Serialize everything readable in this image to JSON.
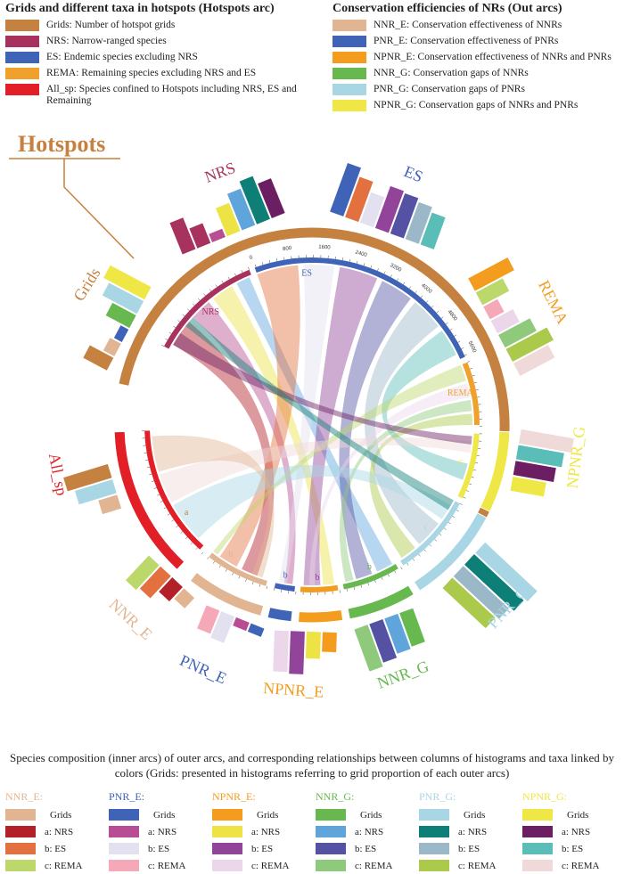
{
  "legend_left": {
    "title": "Grids and different taxa in hotspots (Hotspots arc)",
    "items": [
      {
        "color": "#c5813f",
        "label": "Grids: Number of hotspot grids"
      },
      {
        "color": "#a8325e",
        "label": "NRS: Narrow-ranged species"
      },
      {
        "color": "#3f63b6",
        "label": "ES: Endemic species excluding NRS"
      },
      {
        "color": "#f0a12b",
        "label": "REMA: Remaining species excluding NRS and ES"
      },
      {
        "color": "#e21f26",
        "label": "All_sp: Species confined to Hotspots including NRS, ES and Remaining"
      }
    ]
  },
  "legend_right": {
    "title": "Conservation efficiencies of NRs (Out arcs)",
    "items": [
      {
        "color": "#e2b592",
        "label": "NNR_E: Conservation effectiveness of NNRs"
      },
      {
        "color": "#3f63b6",
        "label": "PNR_E: Conservation effectiveness of PNRs"
      },
      {
        "color": "#f39c1d",
        "label": "NPNR_E: Conservation effectiveness of NNRs and PNRs"
      },
      {
        "color": "#67b84f",
        "label": "NNR_G: Conservation gaps of NNRs"
      },
      {
        "color": "#a8d6e4",
        "label": "PNR_G: Conservation gaps of PNRs"
      },
      {
        "color": "#efe745",
        "label": "NPNR_G: Conservation gaps of NNRs and PNRs"
      }
    ]
  },
  "hotspots_label": "Hotspots",
  "outer_arc_labels": [
    {
      "text": "NRS",
      "color": "#a8325e"
    },
    {
      "text": "ES",
      "color": "#3f63b6"
    },
    {
      "text": "REMA",
      "color": "#f0a12b"
    },
    {
      "text": "NPNR_G",
      "color": "#efe745"
    },
    {
      "text": "PNR_G",
      "color": "#a8d6e4"
    },
    {
      "text": "NNR_G",
      "color": "#67b84f"
    },
    {
      "text": "NPNR_E",
      "color": "#f39c1d"
    },
    {
      "text": "PNR_E",
      "color": "#3f63b6"
    },
    {
      "text": "NNR_E",
      "color": "#e2b592"
    },
    {
      "text": "All_sp",
      "color": "#e21f26"
    },
    {
      "text": "Grids",
      "color": "#c5813f"
    }
  ],
  "inner_arc_labels": [
    "NRS",
    "ES",
    "REMA",
    "a",
    "b",
    "c"
  ],
  "tick_labels": [
    "0",
    "800",
    "1600",
    "2400",
    "3200",
    "4000",
    "4800",
    "5600"
  ],
  "caption": "Species composition (inner arcs) of outer arcs, and corresponding relationships between columns of histograms and taxa linked by colors (Grids: presented in histograms referring to grid proportion of each outer arcs)",
  "bottom_groups": [
    {
      "title": "NNR_E:",
      "title_color": "#e2b592",
      "rows": [
        {
          "color": "#e2b592",
          "label": "Grids"
        },
        {
          "color": "#b42028",
          "label": "a: NRS"
        },
        {
          "color": "#e3703f",
          "label": "b: ES"
        },
        {
          "color": "#bcd86b",
          "label": "c: REMA"
        }
      ]
    },
    {
      "title": "PNR_E:",
      "title_color": "#3f63b6",
      "rows": [
        {
          "color": "#3f63b6",
          "label": "Grids"
        },
        {
          "color": "#b94d93",
          "label": "a: NRS"
        },
        {
          "color": "#e3e1ef",
          "label": "b: ES"
        },
        {
          "color": "#f5a8b8",
          "label": "c: REMA"
        }
      ]
    },
    {
      "title": "NPNR_E:",
      "title_color": "#f39c1d",
      "rows": [
        {
          "color": "#f39c1d",
          "label": "Grids"
        },
        {
          "color": "#eee345",
          "label": "a: NRS"
        },
        {
          "color": "#92449a",
          "label": "b: ES"
        },
        {
          "color": "#ecd7ea",
          "label": "c: REMA"
        }
      ]
    },
    {
      "title": "NNR_G:",
      "title_color": "#67b84f",
      "rows": [
        {
          "color": "#67b84f",
          "label": "Grids"
        },
        {
          "color": "#5fa5dc",
          "label": "a: NRS"
        },
        {
          "color": "#5552a4",
          "label": "b: ES"
        },
        {
          "color": "#8ec97c",
          "label": "c: REMA"
        }
      ]
    },
    {
      "title": "PNR_G:",
      "title_color": "#a8d6e4",
      "rows": [
        {
          "color": "#a8d6e4",
          "label": "Grids"
        },
        {
          "color": "#0e7f77",
          "label": "a: NRS"
        },
        {
          "color": "#9bb8c8",
          "label": "b: ES"
        },
        {
          "color": "#abc94a",
          "label": "c: REMA"
        }
      ]
    },
    {
      "title": "NPNR_G:",
      "title_color": "#efe745",
      "rows": [
        {
          "color": "#efe745",
          "label": "Grids"
        },
        {
          "color": "#6b1f62",
          "label": "a: NRS"
        },
        {
          "color": "#5bbdb8",
          "label": "b: ES"
        },
        {
          "color": "#efd9d9",
          "label": "c: REMA"
        }
      ]
    }
  ]
}
